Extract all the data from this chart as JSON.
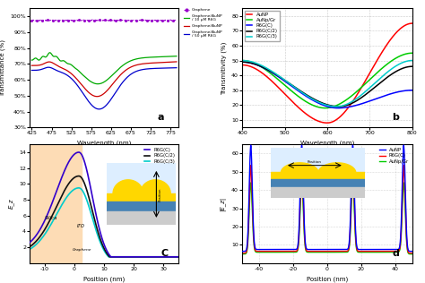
{
  "fig_width": 4.74,
  "fig_height": 3.16,
  "dpi": 100,
  "panel_a": {
    "xlabel": "Wavelength (nm)",
    "ylabel": "Transmittance (%)",
    "xlim": [
      420,
      795
    ],
    "ylim": [
      30,
      105
    ],
    "xticks": [
      425,
      475,
      525,
      575,
      625,
      675,
      725,
      775
    ],
    "yticks": [
      30,
      40,
      50,
      60,
      70,
      80,
      90,
      100
    ],
    "label": "a"
  },
  "panel_b": {
    "xlabel": "Wavelength (nm)",
    "ylabel": "Transmitivity (%)",
    "xlim": [
      400,
      800
    ],
    "ylim": [
      5,
      85
    ],
    "xticks": [
      400,
      500,
      600,
      700,
      800
    ],
    "yticks": [
      10,
      20,
      30,
      40,
      50,
      60,
      70,
      80
    ],
    "label": "b"
  },
  "panel_c": {
    "xlabel": "Position (nm)",
    "ylabel": "E_z",
    "xlim": [
      -15,
      35
    ],
    "ylim": [
      0,
      15
    ],
    "xticks": [
      -10,
      0,
      10,
      20,
      30
    ],
    "yticks": [
      2,
      4,
      6,
      8,
      10,
      12,
      14
    ],
    "label": "C",
    "bg_silica_color": "#FDDCB5"
  },
  "panel_d": {
    "xlabel": "Position (nm)",
    "ylabel": "|E_z|",
    "xlim": [
      -50,
      50
    ],
    "ylim": [
      0,
      65
    ],
    "xticks": [
      -40,
      -20,
      0,
      20,
      40
    ],
    "yticks": [
      10,
      20,
      30,
      40,
      50,
      60
    ],
    "label": "d"
  }
}
